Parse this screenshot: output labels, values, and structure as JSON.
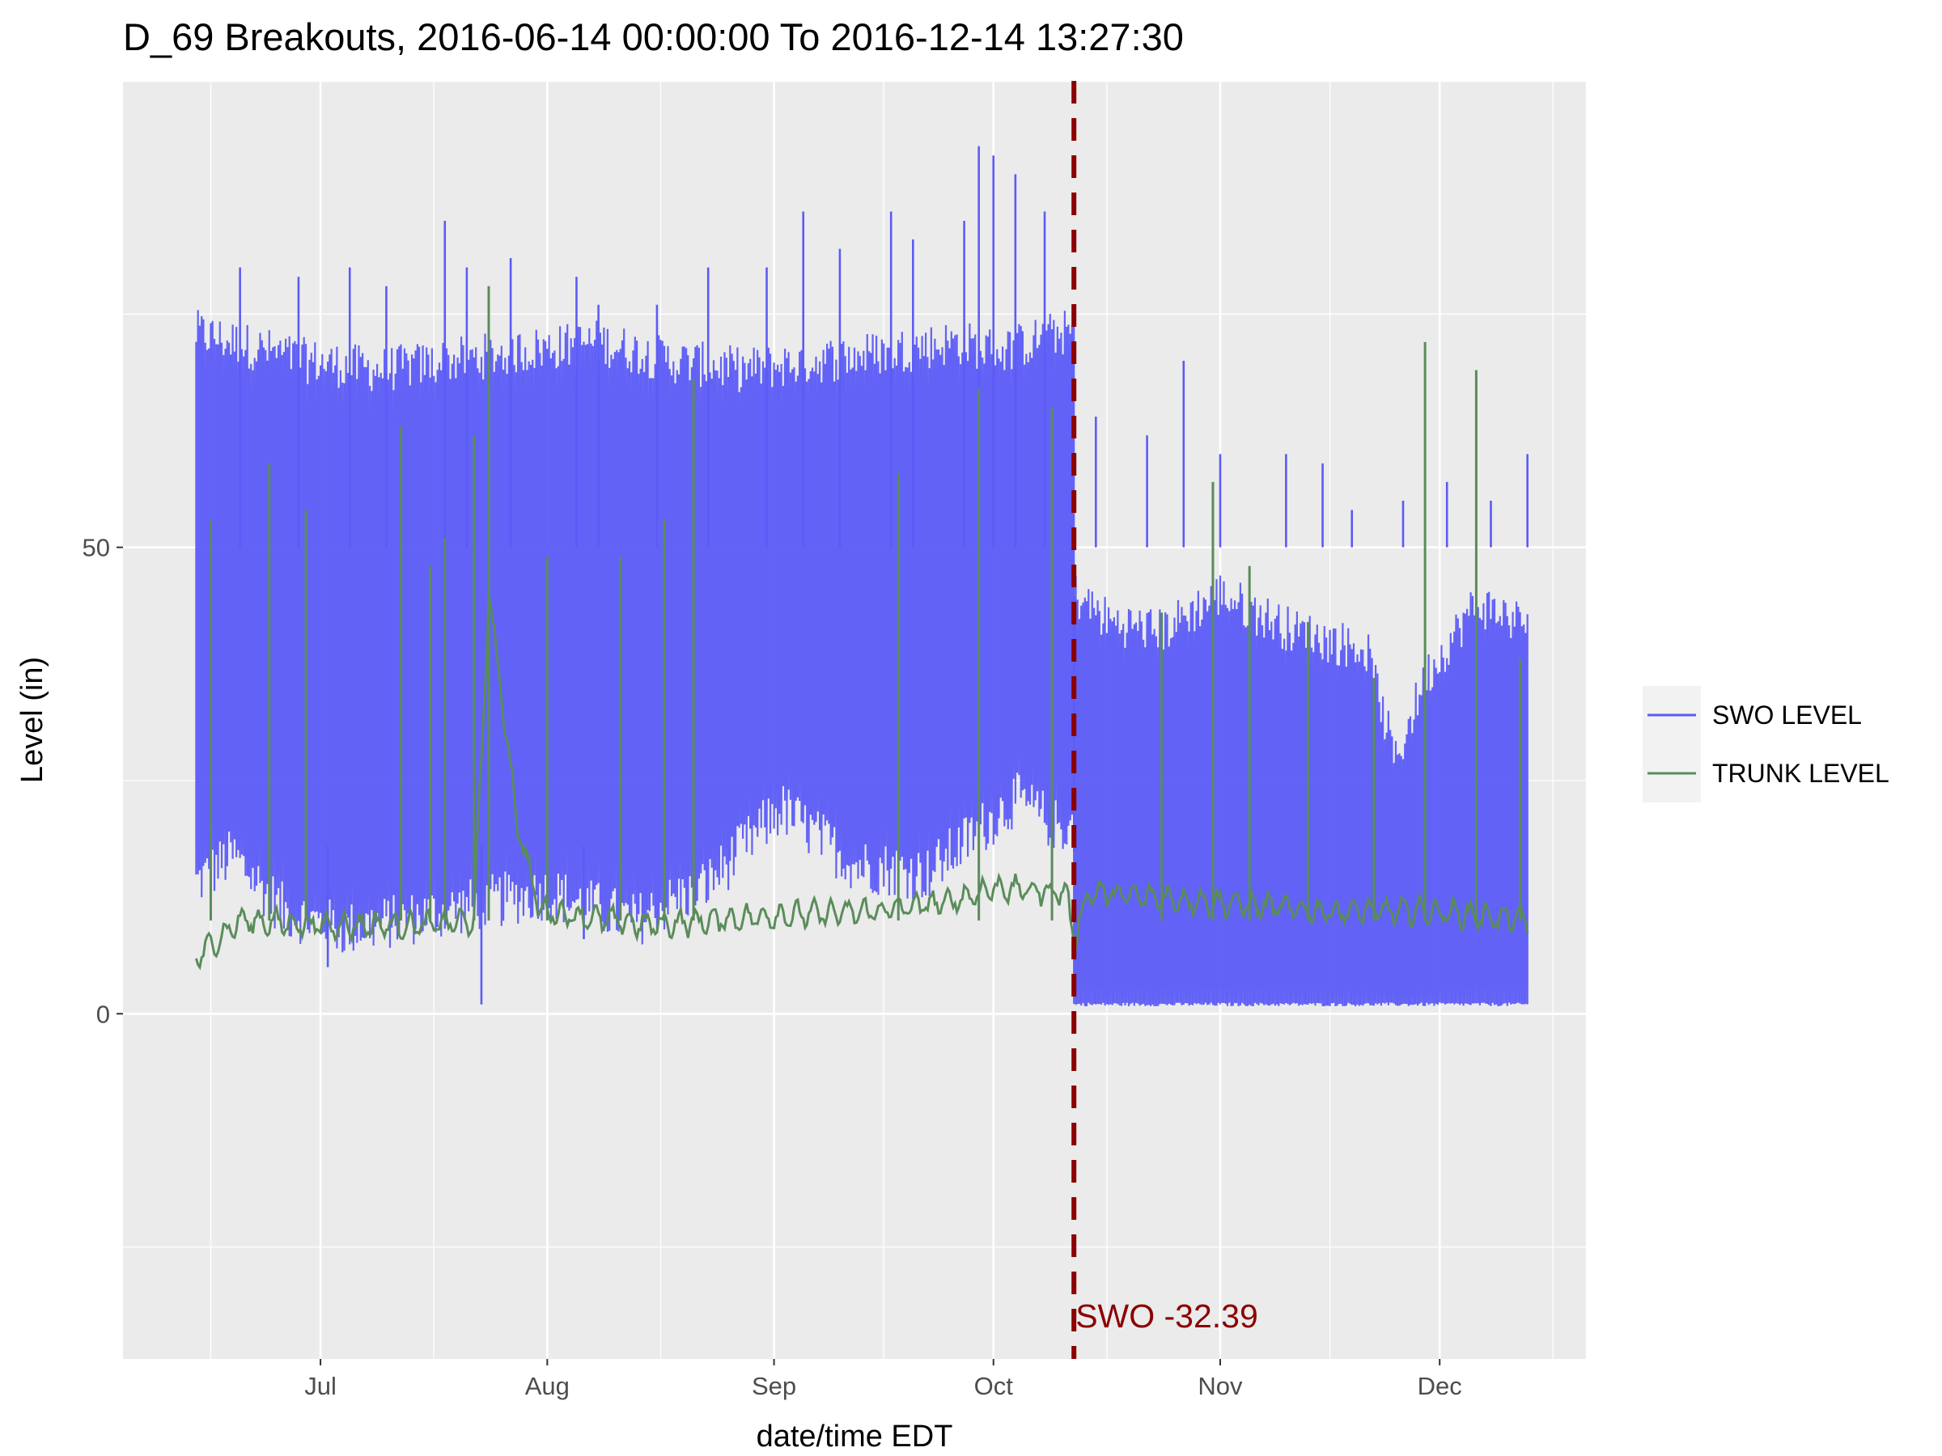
{
  "colors": {
    "panel_bg": "#ebebeb",
    "grid": "#ffffff",
    "swo": "#5b5bf7",
    "trunk": "#5a8c5a",
    "threshold": "#8b0000",
    "legend_key_bg": "#f2f2f2"
  },
  "chart_data": {
    "type": "line",
    "title": "D_69 Breakouts, 2016-06-14 00:00:00 To 2016-12-14 13:27:30",
    "xlabel": "date/time EDT",
    "ylabel": "Level (in)",
    "x_range": [
      "2016-06-04",
      "2016-12-21"
    ],
    "y_range": [
      -37,
      100
    ],
    "x_ticks": [
      {
        "label": "Jul",
        "date": "2016-07-01"
      },
      {
        "label": "Aug",
        "date": "2016-08-01"
      },
      {
        "label": "Sep",
        "date": "2016-09-01"
      },
      {
        "label": "Oct",
        "date": "2016-10-01"
      },
      {
        "label": "Nov",
        "date": "2016-11-01"
      },
      {
        "label": "Dec",
        "date": "2016-12-01"
      }
    ],
    "y_ticks": [
      {
        "label": "0",
        "value": 0
      },
      {
        "label": "50",
        "value": 50
      }
    ],
    "grid": true,
    "legend_position": "right",
    "series": [
      {
        "name": "SWO LEVEL",
        "color": "#5b5bf7",
        "envelope_segments": [
          {
            "start": "2016-06-14",
            "end": "2016-10-12",
            "low": [
              [
                0,
                14
              ],
              [
                5,
                17
              ],
              [
                12,
                11
              ],
              [
                20,
                9
              ],
              [
                28,
                10
              ],
              [
                40,
                12
              ],
              [
                48,
                13
              ],
              [
                60,
                10
              ],
              [
                70,
                14
              ],
              [
                80,
                22
              ],
              [
                90,
                16
              ],
              [
                100,
                15
              ],
              [
                106,
                19
              ],
              [
                112,
                23
              ],
              [
                118,
                20
              ]
            ],
            "high": [
              [
                0,
                73
              ],
              [
                5,
                72
              ],
              [
                15,
                70
              ],
              [
                25,
                69
              ],
              [
                35,
                70
              ],
              [
                44,
                71
              ],
              [
                55,
                72
              ],
              [
                65,
                70
              ],
              [
                75,
                69
              ],
              [
                85,
                70
              ],
              [
                95,
                71
              ],
              [
                104,
                72
              ],
              [
                110,
                71
              ],
              [
                118,
                73
              ]
            ]
          },
          {
            "start": "2016-10-12",
            "end": "2016-12-13",
            "low": [
              [
                0,
                1
              ],
              [
                61,
                1
              ]
            ],
            "high": [
              [
                0,
                45
              ],
              [
                5,
                42
              ],
              [
                12,
                41
              ],
              [
                20,
                45
              ],
              [
                30,
                41
              ],
              [
                40,
                39
              ],
              [
                44,
                27
              ],
              [
                48,
                36
              ],
              [
                55,
                44
              ],
              [
                61,
                42
              ]
            ]
          }
        ],
        "spikes": [
          {
            "date": "2016-06-20",
            "value": 80
          },
          {
            "date": "2016-06-28",
            "value": 79
          },
          {
            "date": "2016-07-05",
            "value": 80
          },
          {
            "date": "2016-07-10",
            "value": 78
          },
          {
            "date": "2016-07-18",
            "value": 85
          },
          {
            "date": "2016-07-21",
            "value": 80
          },
          {
            "date": "2016-07-27",
            "value": 81
          },
          {
            "date": "2016-08-05",
            "value": 79
          },
          {
            "date": "2016-08-08",
            "value": 76
          },
          {
            "date": "2016-08-16",
            "value": 76
          },
          {
            "date": "2016-08-23",
            "value": 80
          },
          {
            "date": "2016-08-31",
            "value": 80
          },
          {
            "date": "2016-09-05",
            "value": 86
          },
          {
            "date": "2016-09-10",
            "value": 82
          },
          {
            "date": "2016-09-17",
            "value": 86
          },
          {
            "date": "2016-09-20",
            "value": 83
          },
          {
            "date": "2016-09-27",
            "value": 85
          },
          {
            "date": "2016-09-29",
            "value": 93
          },
          {
            "date": "2016-10-01",
            "value": 92
          },
          {
            "date": "2016-10-04",
            "value": 90
          },
          {
            "date": "2016-10-08",
            "value": 86
          },
          {
            "date": "2016-10-15",
            "value": 64
          },
          {
            "date": "2016-10-22",
            "value": 62
          },
          {
            "date": "2016-10-27",
            "value": 70
          },
          {
            "date": "2016-11-01",
            "value": 60
          },
          {
            "date": "2016-11-10",
            "value": 60
          },
          {
            "date": "2016-11-15",
            "value": 59
          },
          {
            "date": "2016-11-19",
            "value": 54
          },
          {
            "date": "2016-11-26",
            "value": 55
          },
          {
            "date": "2016-12-02",
            "value": 57
          },
          {
            "date": "2016-12-08",
            "value": 55
          },
          {
            "date": "2016-12-13",
            "value": 60
          }
        ],
        "dips": [
          {
            "date": "2016-07-02",
            "value": 5
          },
          {
            "date": "2016-07-23",
            "value": 1
          },
          {
            "date": "2016-08-06",
            "value": 8
          }
        ]
      },
      {
        "name": "TRUNK LEVEL",
        "color": "#5a8c5a",
        "points": [
          [
            "2016-06-14",
            6
          ],
          [
            "2016-06-20",
            10
          ],
          [
            "2016-07-01",
            9.5
          ],
          [
            "2016-07-15",
            9.5
          ],
          [
            "2016-07-22",
            10
          ],
          [
            "2016-07-24",
            45
          ],
          [
            "2016-07-28",
            20
          ],
          [
            "2016-07-31",
            11
          ],
          [
            "2016-08-15",
            9.5
          ],
          [
            "2016-09-01",
            10.5
          ],
          [
            "2016-09-15",
            11
          ],
          [
            "2016-09-25",
            12
          ],
          [
            "2016-10-01",
            13.5
          ],
          [
            "2016-10-11",
            13
          ],
          [
            "2016-10-12",
            8
          ],
          [
            "2016-10-14",
            13
          ],
          [
            "2016-10-31",
            12
          ],
          [
            "2016-11-15",
            11
          ],
          [
            "2016-11-30",
            11
          ],
          [
            "2016-12-13",
            10
          ]
        ],
        "spikes": [
          {
            "date": "2016-06-16",
            "value": 53
          },
          {
            "date": "2016-06-24",
            "value": 59
          },
          {
            "date": "2016-06-29",
            "value": 54
          },
          {
            "date": "2016-07-12",
            "value": 63
          },
          {
            "date": "2016-07-16",
            "value": 48
          },
          {
            "date": "2016-07-18",
            "value": 51
          },
          {
            "date": "2016-07-22",
            "value": 62
          },
          {
            "date": "2016-07-24",
            "value": 78
          },
          {
            "date": "2016-08-01",
            "value": 49
          },
          {
            "date": "2016-08-11",
            "value": 49
          },
          {
            "date": "2016-08-17",
            "value": 53
          },
          {
            "date": "2016-08-21",
            "value": 68
          },
          {
            "date": "2016-09-18",
            "value": 58
          },
          {
            "date": "2016-09-29",
            "value": 67
          },
          {
            "date": "2016-10-09",
            "value": 65
          },
          {
            "date": "2016-10-24",
            "value": 43
          },
          {
            "date": "2016-10-31",
            "value": 57
          },
          {
            "date": "2016-11-05",
            "value": 48
          },
          {
            "date": "2016-11-13",
            "value": 42
          },
          {
            "date": "2016-11-22",
            "value": 36
          },
          {
            "date": "2016-11-29",
            "value": 72
          },
          {
            "date": "2016-12-06",
            "value": 69
          },
          {
            "date": "2016-12-12",
            "value": 38
          }
        ]
      }
    ],
    "annotations": [
      {
        "type": "vline",
        "date": "2016-10-12",
        "style": "dashed",
        "color": "#8b0000",
        "label": "SWO -32.39"
      }
    ]
  }
}
